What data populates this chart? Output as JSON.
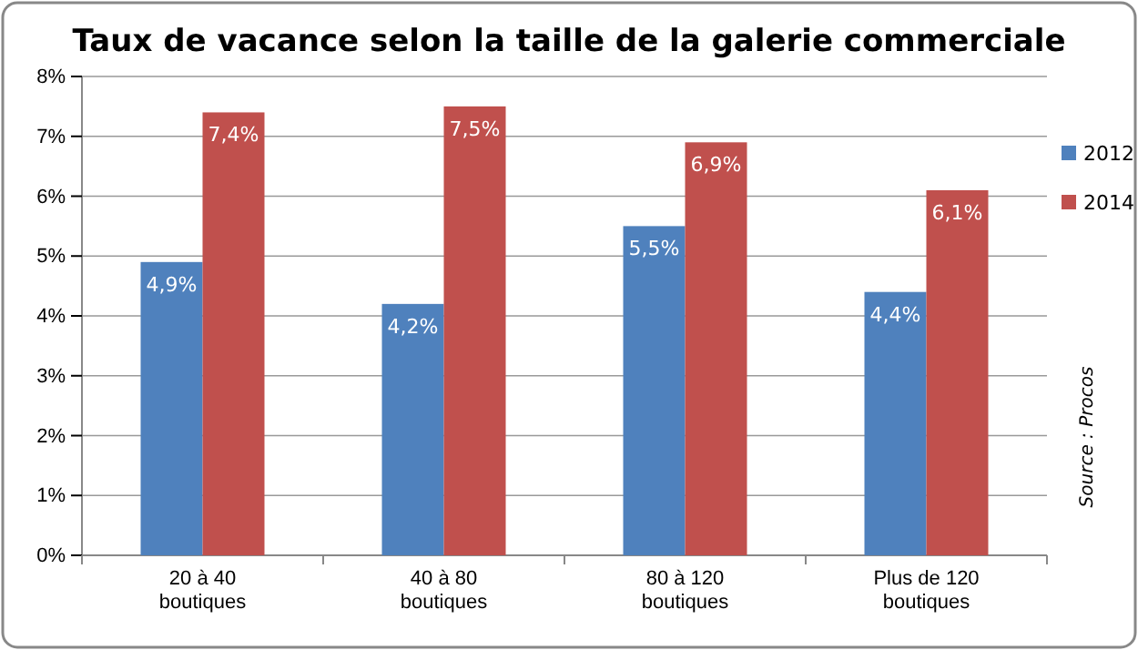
{
  "chart_data": {
    "type": "bar",
    "title": "Taux de vacance selon la taille de la galerie commerciale",
    "categories": [
      "20 à 40 boutiques",
      "40 à 80 boutiques",
      "80 à 120 boutiques",
      "Plus de 120 boutiques"
    ],
    "series": [
      {
        "name": "2012",
        "color": "#4f81bd",
        "values": [
          4.9,
          4.2,
          5.5,
          4.4
        ],
        "value_labels": [
          "4,9%",
          "4,2%",
          "5,5%",
          "4,4%"
        ]
      },
      {
        "name": "2014",
        "color": "#c0504d",
        "values": [
          7.4,
          7.5,
          6.9,
          6.1
        ],
        "value_labels": [
          "7,4%",
          "7,5%",
          "6,9%",
          "6,1%"
        ]
      }
    ],
    "ylim": [
      0,
      8
    ],
    "yticks": [
      {
        "value": 0,
        "label": "0%"
      },
      {
        "value": 1,
        "label": "1%"
      },
      {
        "value": 2,
        "label": "2%"
      },
      {
        "value": 3,
        "label": "3%"
      },
      {
        "value": 4,
        "label": "4%"
      },
      {
        "value": 5,
        "label": "5%"
      },
      {
        "value": 6,
        "label": "6%"
      },
      {
        "value": 7,
        "label": "7%"
      },
      {
        "value": 8,
        "label": "8%"
      }
    ],
    "grid": "y",
    "legend": "right",
    "annotations": [
      "Source : Procos"
    ]
  }
}
